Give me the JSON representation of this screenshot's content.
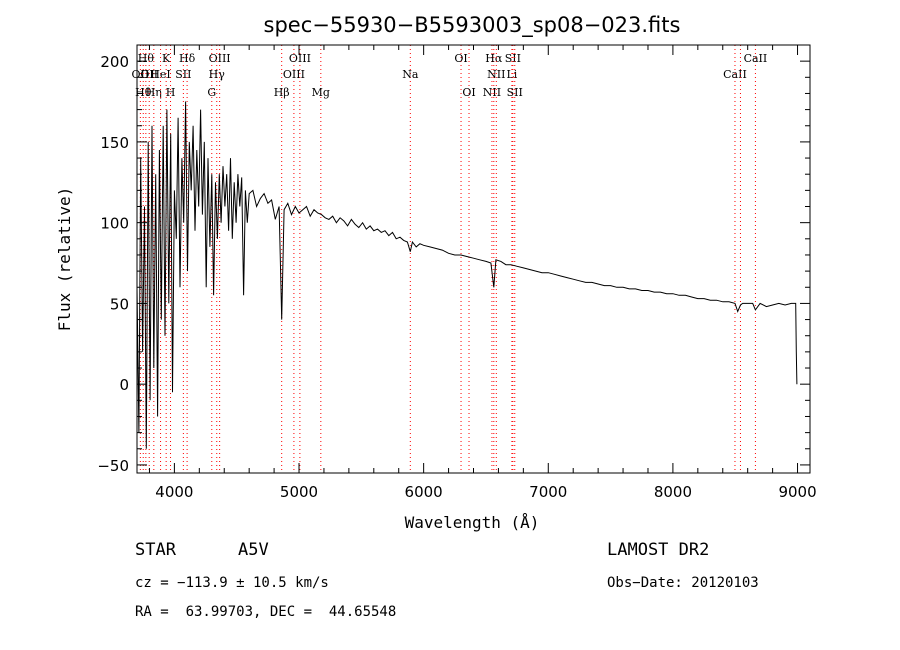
{
  "info": {
    "object_class": "STAR",
    "subclass": "A5V",
    "survey": "LAMOST DR2",
    "cz": "cz = −113.9 ± 10.5 km/s",
    "obs_date": "Obs−Date: 20120103",
    "coords": "RA =  63.99703, DEC =  44.65548"
  },
  "chart_data": {
    "type": "line",
    "title": "spec−55930−B5593003_sp08−023.fits",
    "xlabel": "Wavelength (Å)",
    "ylabel": "Flux (relative)",
    "xlim": [
      3700,
      9100
    ],
    "ylim": [
      -55,
      210
    ],
    "xticks": [
      4000,
      5000,
      6000,
      7000,
      8000,
      9000
    ],
    "yticks": [
      -50,
      0,
      50,
      100,
      150,
      200
    ],
    "grid": false,
    "colors": {
      "spectrum": "#000000",
      "lines": "#ff0000"
    },
    "series": [
      {
        "x": [
          3700,
          3715,
          3730,
          3745,
          3760,
          3775,
          3790,
          3805,
          3820,
          3835,
          3850,
          3865,
          3880,
          3895,
          3910,
          3925,
          3940,
          3955,
          3970,
          3985,
          4000,
          4015,
          4030,
          4045,
          4060,
          4075,
          4090,
          4105,
          4120,
          4135,
          4150,
          4165,
          4180,
          4195,
          4210,
          4225,
          4240,
          4255,
          4270,
          4285,
          4300,
          4315,
          4330,
          4345,
          4360,
          4375,
          4390,
          4405,
          4420,
          4435,
          4450,
          4465,
          4480,
          4495,
          4510,
          4525,
          4540,
          4555,
          4570,
          4585,
          4600,
          4630,
          4660,
          4690,
          4720,
          4750,
          4780,
          4810,
          4840,
          4861,
          4880,
          4910,
          4940,
          4970,
          5000,
          5030,
          5060,
          5090,
          5120,
          5150,
          5180,
          5210,
          5240,
          5270,
          5300,
          5330,
          5360,
          5390,
          5420,
          5450,
          5480,
          5510,
          5540,
          5570,
          5600,
          5630,
          5660,
          5690,
          5720,
          5750,
          5780,
          5810,
          5840,
          5870,
          5893,
          5910,
          5940,
          5970,
          6000,
          6050,
          6100,
          6150,
          6200,
          6250,
          6300,
          6350,
          6400,
          6450,
          6500,
          6540,
          6563,
          6580,
          6620,
          6660,
          6700,
          6750,
          6800,
          6850,
          6900,
          6950,
          7000,
          7050,
          7100,
          7150,
          7200,
          7250,
          7300,
          7350,
          7400,
          7450,
          7500,
          7550,
          7600,
          7650,
          7700,
          7750,
          7800,
          7850,
          7900,
          7950,
          8000,
          8050,
          8100,
          8150,
          8200,
          8250,
          8300,
          8350,
          8400,
          8450,
          8498,
          8520,
          8542,
          8560,
          8600,
          8640,
          8662,
          8700,
          8750,
          8800,
          8850,
          8900,
          8950,
          8985,
          8990,
          8995
        ],
        "y": [
          60,
          -30,
          140,
          20,
          110,
          -40,
          150,
          -10,
          160,
          10,
          130,
          -20,
          145,
          40,
          160,
          30,
          170,
          50,
          155,
          -5,
          120,
          90,
          165,
          60,
          140,
          100,
          175,
          70,
          150,
          120,
          160,
          95,
          145,
          110,
          170,
          105,
          150,
          60,
          140,
          85,
          130,
          55,
          125,
          90,
          130,
          100,
          135,
          110,
          130,
          95,
          140,
          90,
          125,
          100,
          130,
          110,
          128,
          55,
          120,
          100,
          118,
          120,
          110,
          115,
          118,
          112,
          114,
          102,
          110,
          40,
          108,
          112,
          105,
          110,
          106,
          108,
          110,
          104,
          108,
          106,
          105,
          103,
          102,
          104,
          100,
          103,
          101,
          98,
          102,
          99,
          97,
          100,
          96,
          98,
          95,
          96,
          94,
          95,
          92,
          94,
          90,
          91,
          89,
          88,
          82,
          88,
          85,
          87,
          86,
          85,
          84,
          83,
          81,
          80,
          80,
          79,
          78,
          77,
          76,
          75,
          60,
          77,
          76,
          74,
          74,
          73,
          72,
          71,
          70,
          69,
          69,
          68,
          67,
          66,
          65,
          64,
          63,
          63,
          62,
          61,
          61,
          60,
          60,
          59,
          59,
          58,
          58,
          57,
          57,
          56,
          56,
          55,
          55,
          54,
          53,
          53,
          52,
          52,
          51,
          51,
          50,
          45,
          49,
          50,
          50,
          50,
          46,
          50,
          48,
          49,
          50,
          49,
          50,
          50,
          20,
          0
        ]
      }
    ],
    "lines": [
      {
        "wl": 3727,
        "row": 2,
        "label": "OII"
      },
      {
        "wl": 3750,
        "row": 3,
        "label": "Hθ"
      },
      {
        "wl": 3771,
        "row": 1,
        "label": "Hθ"
      },
      {
        "wl": 3798,
        "row": 2,
        "label": "OII"
      },
      {
        "wl": 3835,
        "row": 3,
        "label": "Hη"
      },
      {
        "wl": 3889,
        "row": 2,
        "label": "HeI"
      },
      {
        "wl": 3934,
        "row": 1,
        "label": "K"
      },
      {
        "wl": 3969,
        "row": 3,
        "label": "H"
      },
      {
        "wl": 4072,
        "row": 2,
        "label": "SII"
      },
      {
        "wl": 4102,
        "row": 1,
        "label": "Hδ"
      },
      {
        "wl": 4300,
        "row": 3,
        "label": "G"
      },
      {
        "wl": 4340,
        "row": 2,
        "label": "Hγ"
      },
      {
        "wl": 4363,
        "row": 1,
        "label": "OIII"
      },
      {
        "wl": 4861,
        "row": 3,
        "label": "Hβ"
      },
      {
        "wl": 4959,
        "row": 2,
        "label": "OIII"
      },
      {
        "wl": 5007,
        "row": 1,
        "label": "OIII"
      },
      {
        "wl": 5175,
        "row": 3,
        "label": "Mg"
      },
      {
        "wl": 5893,
        "row": 2,
        "label": "Na"
      },
      {
        "wl": 6300,
        "row": 1,
        "label": "OI"
      },
      {
        "wl": 6364,
        "row": 3,
        "label": "OI"
      },
      {
        "wl": 6548,
        "row": 3,
        "label": "NII"
      },
      {
        "wl": 6563,
        "row": 1,
        "label": "Hα"
      },
      {
        "wl": 6583,
        "row": 2,
        "label": "NII"
      },
      {
        "wl": 6708,
        "row": 2,
        "label": "Li"
      },
      {
        "wl": 6716,
        "row": 1,
        "label": "SII"
      },
      {
        "wl": 6731,
        "row": 3,
        "label": "SII"
      },
      {
        "wl": 8498,
        "row": 2,
        "label": "CaII"
      },
      {
        "wl": 8542,
        "row": 2,
        "label": ""
      },
      {
        "wl": 8662,
        "row": 1,
        "label": "CaII"
      }
    ]
  }
}
